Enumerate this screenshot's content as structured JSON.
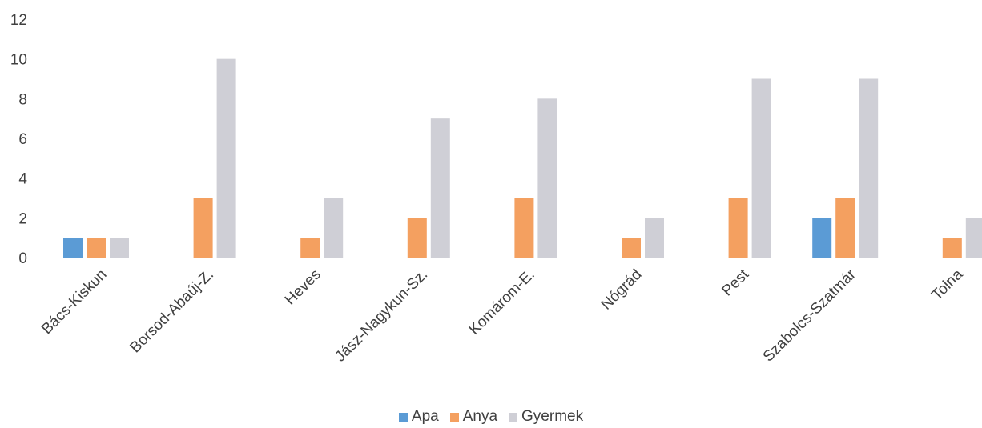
{
  "chart_data": {
    "type": "bar",
    "categories": [
      "Bács-Kiskun",
      "Borsod-Abaúj-Z.",
      "Heves",
      "Jász-Nagykun-Sz.",
      "Komárom-E.",
      "Nógrád",
      "Pest",
      "Szabolcs-Szatmár",
      "Tolna"
    ],
    "series": [
      {
        "name": "Apa",
        "values": [
          1,
          0,
          0,
          0,
          0,
          0,
          0,
          2,
          0
        ],
        "color": "#5b9bd5"
      },
      {
        "name": "Anya",
        "values": [
          1,
          3,
          1,
          2,
          3,
          1,
          3,
          3,
          1
        ],
        "color": "#f4a060"
      },
      {
        "name": "Gyermek",
        "values": [
          1,
          10,
          3,
          7,
          8,
          2,
          9,
          9,
          2
        ],
        "color": "#cfcfd6"
      }
    ],
    "ylim": [
      0,
      12
    ],
    "yticks": [
      "0",
      "2",
      "4",
      "6",
      "8",
      "10",
      "12"
    ],
    "grid": false,
    "legend_position": "bottom-center",
    "xlabel": "",
    "ylabel": "",
    "title": ""
  }
}
